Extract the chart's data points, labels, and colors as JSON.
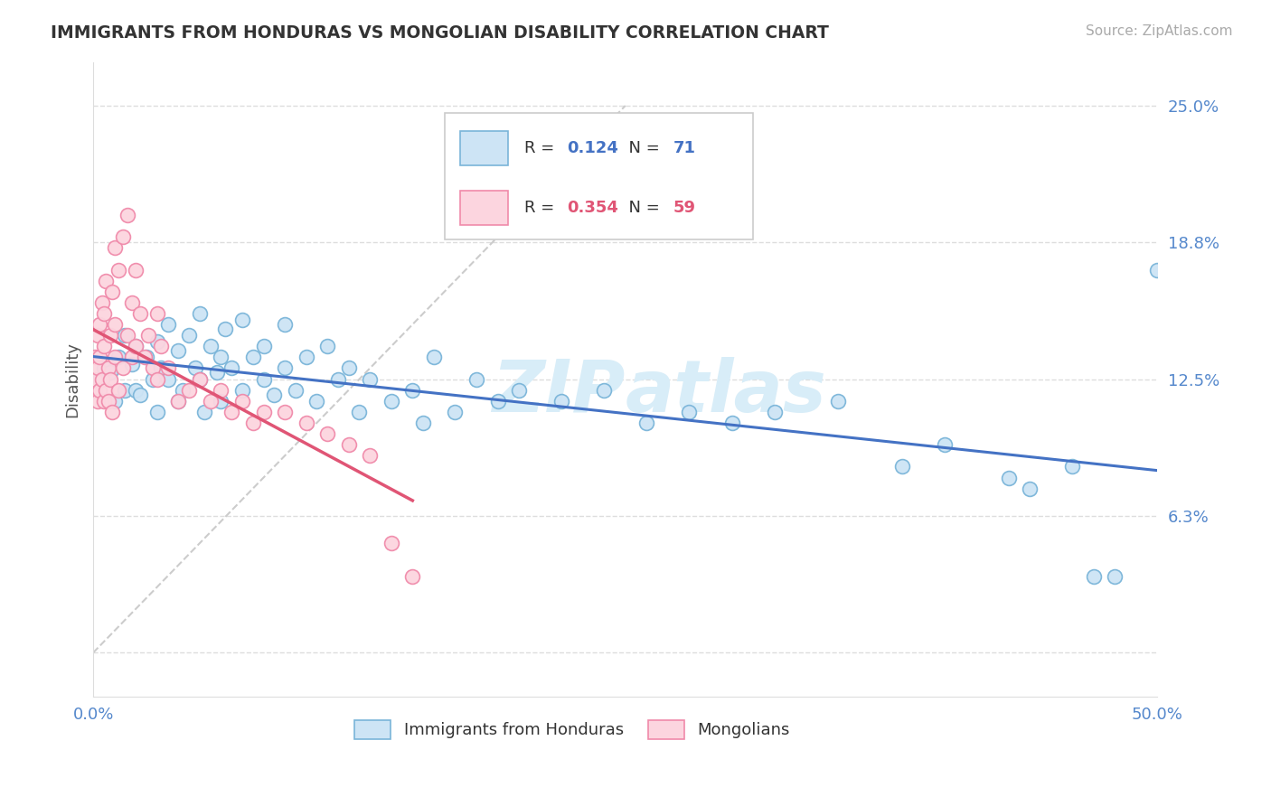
{
  "title": "IMMIGRANTS FROM HONDURAS VS MONGOLIAN DISABILITY CORRELATION CHART",
  "source": "Source: ZipAtlas.com",
  "ylabel": "Disability",
  "xlim": [
    0,
    50
  ],
  "ylim": [
    -2,
    27
  ],
  "ytick_positions": [
    0,
    6.25,
    12.5,
    18.75,
    25
  ],
  "ytick_labels": [
    "",
    "6.3%",
    "12.5%",
    "18.8%",
    "25.0%"
  ],
  "xtick_positions": [
    0,
    10,
    20,
    30,
    40,
    50
  ],
  "xtick_labels": [
    "0.0%",
    "",
    "",
    "",
    "",
    "50.0%"
  ],
  "blue_R": 0.124,
  "blue_N": 71,
  "pink_R": 0.354,
  "pink_N": 59,
  "blue_scatter_color": "#cde4f5",
  "blue_edge_color": "#7ab5d9",
  "pink_scatter_color": "#fcd5df",
  "pink_edge_color": "#f08aaa",
  "trend_blue_color": "#4472C4",
  "trend_pink_color": "#e05575",
  "grid_color": "#dddddd",
  "tick_color": "#5588cc",
  "watermark_color": "#d8edf8",
  "legend_label_blue": "Immigrants from Honduras",
  "legend_label_pink": "Mongolians"
}
